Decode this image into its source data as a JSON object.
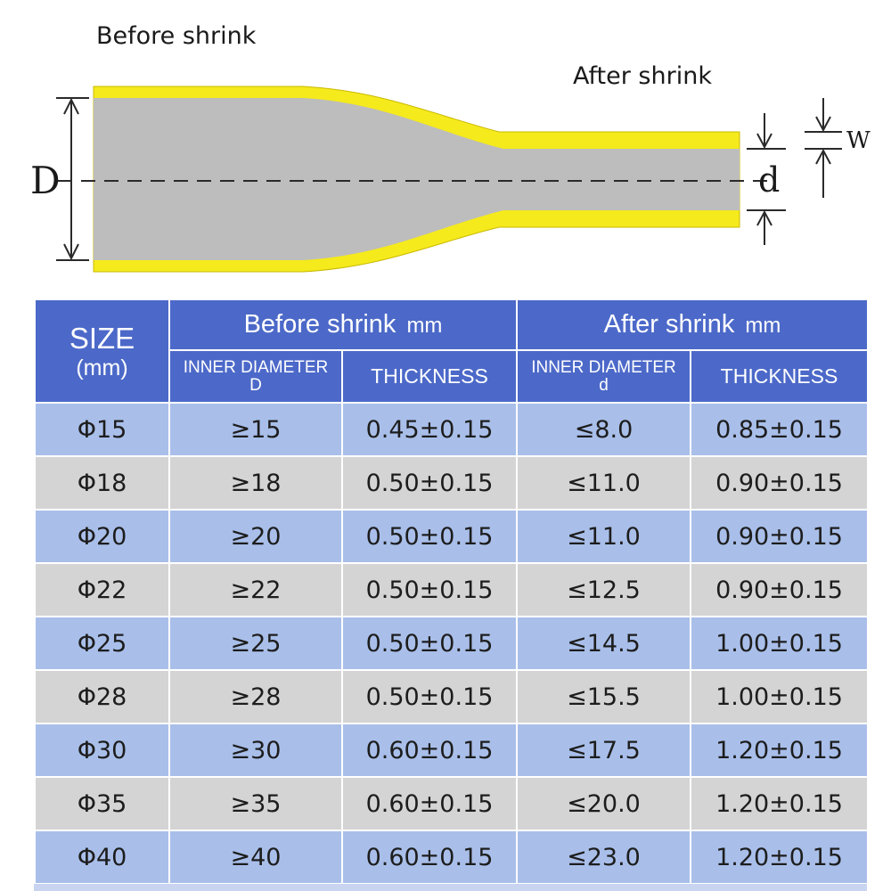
{
  "diagram": {
    "before_label": "Before  shrink",
    "after_label": "After shrink",
    "D_label": "D",
    "d_label": "d",
    "w_label": "W",
    "colors": {
      "tube": "#f5ea1c",
      "core": "#bdbdbd",
      "line": "#2a2a2a"
    }
  },
  "table": {
    "size_header": "SIZE",
    "size_unit": "(mm)",
    "before_header": "Before  shrink",
    "before_unit": "mm",
    "after_header": "After shrink",
    "after_unit": "mm",
    "before_inner_1": "INNER DIAMETER",
    "before_inner_2": "D",
    "before_thickness": "THICKNESS",
    "after_inner_1": "INNER DIAMETER",
    "after_inner_2": "d",
    "after_thickness": "THICKNESS",
    "colors": {
      "header": "#4c69c9",
      "row_blue": "#a9bfea",
      "row_gray": "#d4d4d4"
    },
    "rows": [
      {
        "size": "Φ15",
        "before_d": "≥15",
        "before_t": "0.45±0.15",
        "after_d": "≤8.0",
        "after_t": "0.85±0.15"
      },
      {
        "size": "Φ18",
        "before_d": "≥18",
        "before_t": "0.50±0.15",
        "after_d": "≤11.0",
        "after_t": "0.90±0.15"
      },
      {
        "size": "Φ20",
        "before_d": "≥20",
        "before_t": "0.50±0.15",
        "after_d": "≤11.0",
        "after_t": "0.90±0.15"
      },
      {
        "size": "Φ22",
        "before_d": "≥22",
        "before_t": "0.50±0.15",
        "after_d": "≤12.5",
        "after_t": "0.90±0.15"
      },
      {
        "size": "Φ25",
        "before_d": "≥25",
        "before_t": "0.50±0.15",
        "after_d": "≤14.5",
        "after_t": "1.00±0.15"
      },
      {
        "size": "Φ28",
        "before_d": "≥28",
        "before_t": "0.50±0.15",
        "after_d": "≤15.5",
        "after_t": "1.00±0.15"
      },
      {
        "size": "Φ30",
        "before_d": "≥30",
        "before_t": "0.60±0.15",
        "after_d": "≤17.5",
        "after_t": "1.20±0.15"
      },
      {
        "size": "Φ35",
        "before_d": "≥35",
        "before_t": "0.60±0.15",
        "after_d": "≤20.0",
        "after_t": "1.20±0.15"
      },
      {
        "size": "Φ40",
        "before_d": "≥40",
        "before_t": "0.60±0.15",
        "after_d": "≤23.0",
        "after_t": "1.20±0.15"
      }
    ]
  }
}
